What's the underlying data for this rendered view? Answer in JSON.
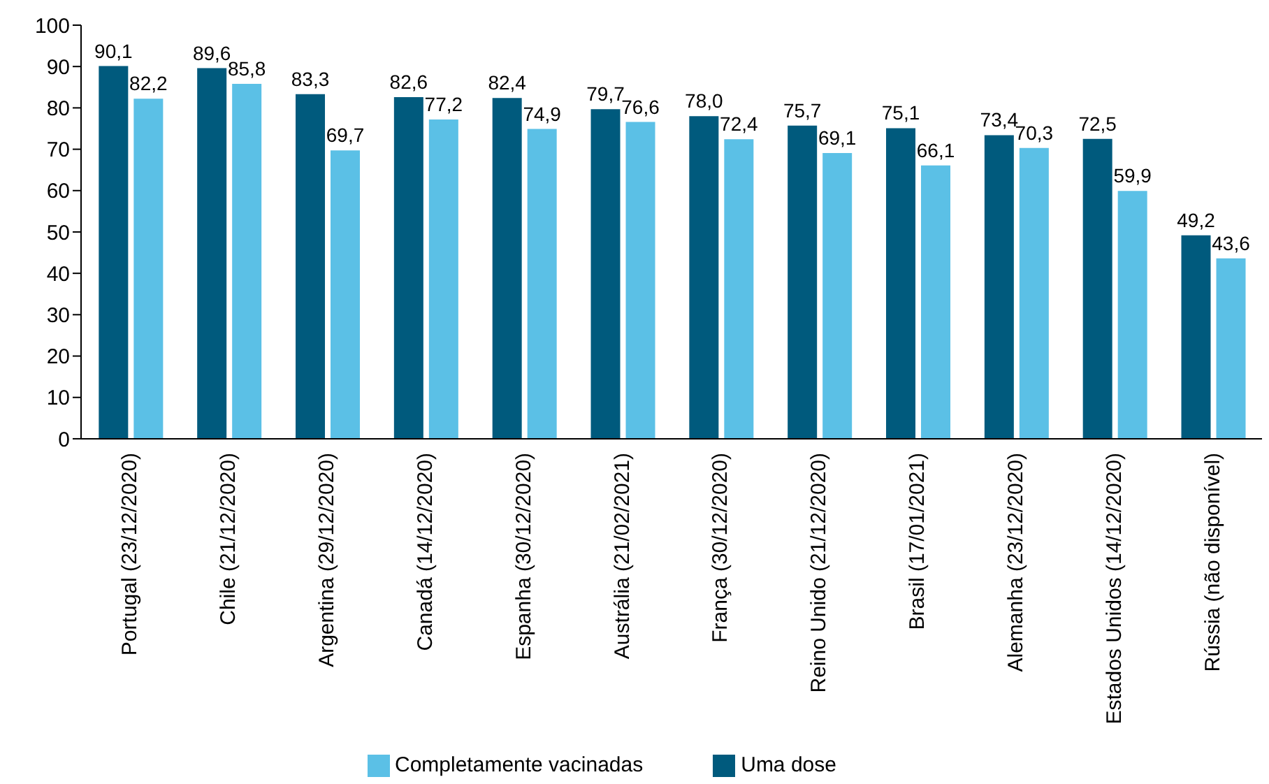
{
  "chart_data": {
    "type": "bar",
    "categories": [
      "Portugal (23/12/2020)",
      "Chile (21/12/2020)",
      "Argentina (29/12/2020)",
      "Canadá (14/12/2020)",
      "Espanha (30/12/2020)",
      "Austrália (21/02/2021)",
      "França (30/12/2020)",
      "Reino Unido (21/12/2020)",
      "Brasil (17/01/2021)",
      "Alemanha (23/12/2020)",
      "Estados Unidos (14/12/2020)",
      "Rússia (não disponível)"
    ],
    "series": [
      {
        "name": "Uma dose",
        "color": "#005a7d",
        "values": [
          90.1,
          89.6,
          83.3,
          82.6,
          82.4,
          79.7,
          78.0,
          75.7,
          75.1,
          73.4,
          72.5,
          49.2
        ],
        "value_labels": [
          "90,1",
          "89,6",
          "83,3",
          "82,6",
          "82,4",
          "79,7",
          "78,0",
          "75,7",
          "75,1",
          "73,4",
          "72,5",
          "49,2"
        ]
      },
      {
        "name": "Completamente vacinadas",
        "color": "#5bc0e6",
        "values": [
          82.2,
          85.8,
          69.7,
          77.2,
          74.9,
          76.6,
          72.4,
          69.1,
          66.1,
          70.3,
          59.9,
          43.6
        ],
        "value_labels": [
          "82,2",
          "85,8",
          "69,7",
          "77,2",
          "74,9",
          "76,6",
          "72,4",
          "69,1",
          "66,1",
          "70,3",
          "59,9",
          "43,6"
        ]
      }
    ],
    "ylim": [
      0,
      100
    ],
    "yticks": [
      0,
      10,
      20,
      30,
      40,
      50,
      60,
      70,
      80,
      90,
      100
    ],
    "grid": false,
    "legend": "bottom"
  }
}
